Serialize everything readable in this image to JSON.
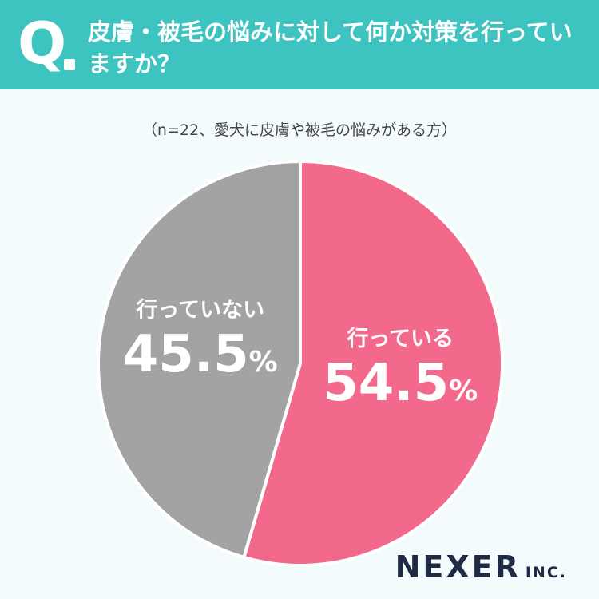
{
  "header": {
    "q_label": "Q",
    "question": "皮膚・被毛の悩みに対して何か対策を行っていますか？",
    "bg_color": "#3ec4c0"
  },
  "note": "（n=22、愛犬に皮膚や被毛の悩みがある方）",
  "chart_data": {
    "type": "pie",
    "slices": [
      {
        "label": "行っている",
        "value": 54.5,
        "color": "#f2698b"
      },
      {
        "label": "行っていない",
        "value": 45.5,
        "color": "#a3a3a3"
      }
    ],
    "unit": "%",
    "start": "12 o'clock",
    "direction": "clockwise",
    "title": "",
    "legend": "none"
  },
  "logo": {
    "main": "NEXER",
    "sub": "INC."
  }
}
